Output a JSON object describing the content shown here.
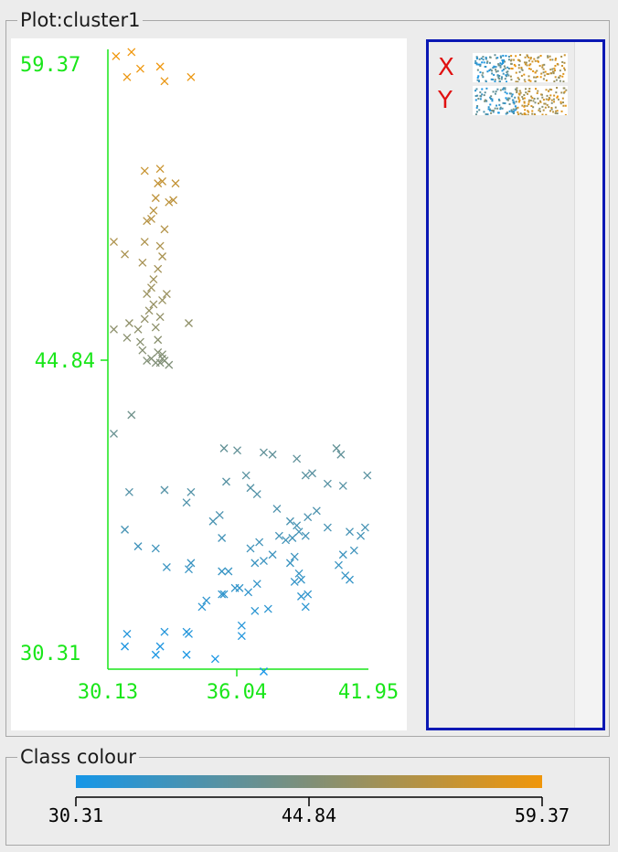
{
  "plot_panel": {
    "title": "Plot:cluster1"
  },
  "axis_selector": {
    "x_label": "X",
    "y_label": "Y"
  },
  "colour_panel": {
    "title": "Class colour"
  },
  "colors": {
    "axis": "#19e619",
    "low": "#1596e8",
    "mid": "#7f8f78",
    "high": "#f0960a",
    "selection_border": "#0a18b4",
    "axis_letter": "#e01010"
  },
  "chart_data": [
    {
      "type": "scatter",
      "marker": "x",
      "xlim": [
        30.13,
        41.95
      ],
      "ylim": [
        30.31,
        59.37
      ],
      "x_ticks": [
        "30.13",
        "36.04",
        "41.95"
      ],
      "y_ticks": [
        "30.31",
        "44.84",
        "59.37"
      ],
      "color_by": "y",
      "grid": false,
      "points": [
        [
          30.5,
          59.7
        ],
        [
          31.2,
          59.9
        ],
        [
          31.0,
          58.7
        ],
        [
          32.5,
          59.2
        ],
        [
          32.7,
          58.5
        ],
        [
          33.9,
          58.7
        ],
        [
          31.6,
          59.1
        ],
        [
          31.8,
          54.2
        ],
        [
          32.5,
          54.3
        ],
        [
          32.3,
          52.9
        ],
        [
          32.9,
          52.7
        ],
        [
          31.9,
          51.8
        ],
        [
          32.7,
          51.4
        ],
        [
          31.8,
          50.8
        ],
        [
          32.6,
          50.1
        ],
        [
          32.4,
          49.5
        ],
        [
          31.7,
          49.8
        ],
        [
          32.1,
          48.6
        ],
        [
          32.8,
          48.3
        ],
        [
          31.9,
          48.3
        ],
        [
          31.8,
          47.1
        ],
        [
          32.5,
          47.2
        ],
        [
          31.6,
          46.0
        ],
        [
          32.3,
          46.7
        ],
        [
          32.4,
          45.5
        ],
        [
          31.7,
          45.6
        ],
        [
          32.6,
          45.4
        ],
        [
          32.3,
          45.0
        ],
        [
          32.9,
          44.9
        ],
        [
          32.6,
          45.2
        ],
        [
          32.7,
          45.1
        ],
        [
          32.1,
          45.2
        ],
        [
          32.5,
          45.0
        ],
        [
          32.4,
          53.6
        ],
        [
          32.6,
          53.7
        ],
        [
          32.2,
          52.3
        ],
        [
          32.1,
          51.9
        ],
        [
          32.5,
          50.6
        ],
        [
          32.2,
          49.0
        ],
        [
          32.6,
          48.0
        ],
        [
          32.2,
          47.8
        ],
        [
          32.0,
          47.5
        ],
        [
          31.5,
          46.6
        ],
        [
          32.4,
          46.1
        ],
        [
          31.1,
          46.9
        ],
        [
          33.8,
          46.9
        ],
        [
          30.4,
          46.6
        ],
        [
          31.0,
          46.2
        ],
        [
          30.9,
          50.2
        ],
        [
          30.4,
          50.8
        ],
        [
          33.1,
          52.8
        ],
        [
          33.2,
          53.6
        ],
        [
          31.9,
          45.1
        ],
        [
          30.4,
          41.6
        ],
        [
          31.2,
          42.5
        ],
        [
          35.4,
          40.9
        ],
        [
          36.0,
          40.8
        ],
        [
          37.2,
          40.7
        ],
        [
          37.6,
          40.6
        ],
        [
          38.7,
          40.4
        ],
        [
          39.1,
          39.6
        ],
        [
          39.4,
          39.7
        ],
        [
          40.5,
          40.9
        ],
        [
          40.7,
          40.6
        ],
        [
          41.9,
          39.6
        ],
        [
          40.8,
          39.1
        ],
        [
          40.1,
          39.2
        ],
        [
          36.4,
          39.6
        ],
        [
          35.5,
          39.3
        ],
        [
          36.6,
          39.0
        ],
        [
          36.9,
          38.7
        ],
        [
          37.8,
          38.0
        ],
        [
          38.4,
          37.4
        ],
        [
          38.7,
          37.2
        ],
        [
          39.2,
          37.6
        ],
        [
          39.6,
          37.9
        ],
        [
          40.1,
          37.1
        ],
        [
          41.1,
          36.9
        ],
        [
          41.8,
          37.1
        ],
        [
          41.6,
          36.7
        ],
        [
          41.3,
          36.0
        ],
        [
          40.8,
          35.8
        ],
        [
          40.6,
          35.3
        ],
        [
          40.9,
          34.8
        ],
        [
          41.1,
          34.6
        ],
        [
          39.1,
          36.7
        ],
        [
          38.8,
          36.9
        ],
        [
          38.5,
          36.6
        ],
        [
          38.2,
          36.5
        ],
        [
          37.9,
          36.7
        ],
        [
          37.0,
          36.4
        ],
        [
          36.6,
          36.1
        ],
        [
          35.3,
          36.6
        ],
        [
          35.2,
          37.7
        ],
        [
          34.9,
          37.4
        ],
        [
          33.7,
          38.3
        ],
        [
          33.9,
          38.8
        ],
        [
          32.7,
          38.9
        ],
        [
          31.1,
          38.8
        ],
        [
          30.9,
          37.0
        ],
        [
          31.5,
          36.2
        ],
        [
          32.3,
          36.1
        ],
        [
          32.8,
          35.2
        ],
        [
          33.8,
          35.1
        ],
        [
          33.9,
          35.4
        ],
        [
          35.3,
          35.0
        ],
        [
          35.6,
          35.0
        ],
        [
          36.8,
          35.4
        ],
        [
          37.2,
          35.5
        ],
        [
          38.4,
          35.4
        ],
        [
          38.6,
          35.7
        ],
        [
          38.8,
          34.9
        ],
        [
          38.6,
          34.5
        ],
        [
          38.9,
          34.6
        ],
        [
          37.6,
          35.8
        ],
        [
          36.9,
          34.4
        ],
        [
          36.5,
          34.0
        ],
        [
          35.9,
          34.2
        ],
        [
          35.3,
          33.9
        ],
        [
          34.6,
          33.6
        ],
        [
          34.4,
          33.3
        ],
        [
          33.7,
          32.1
        ],
        [
          36.2,
          32.4
        ],
        [
          36.8,
          33.1
        ],
        [
          37.4,
          33.2
        ],
        [
          35.4,
          33.9
        ],
        [
          36.2,
          31.9
        ],
        [
          39.2,
          33.9
        ],
        [
          38.9,
          33.8
        ],
        [
          39.1,
          33.3
        ],
        [
          36.1,
          34.2
        ],
        [
          31.0,
          32.0
        ],
        [
          30.9,
          31.4
        ],
        [
          32.7,
          32.1
        ],
        [
          32.3,
          31.0
        ],
        [
          32.5,
          31.4
        ],
        [
          33.8,
          32.0
        ],
        [
          33.7,
          31.0
        ],
        [
          35.0,
          30.8
        ],
        [
          37.2,
          30.2
        ]
      ]
    },
    {
      "type": "heatmap",
      "name": "colour legend",
      "ticks": [
        "30.31",
        "44.84",
        "59.37"
      ],
      "range": [
        30.31,
        59.37
      ]
    }
  ]
}
